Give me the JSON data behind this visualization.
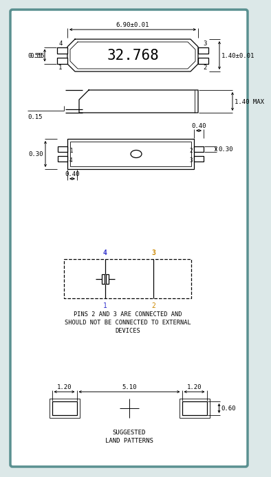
{
  "bg_color": "#dce8e8",
  "inner_bg": "#ffffff",
  "border_color": "#5a9090",
  "line_color": "#000000",
  "pin_color_14": "#3333cc",
  "pin_color_23": "#cc8800",
  "title": "32.768",
  "dim_6_90": "6.90±0.01",
  "dim_1_40_01": "1.40±0.01",
  "dim_1_40_max": "1.40 MAX",
  "dim_0_55": "0.55",
  "dim_0_15": "0.15",
  "dim_0_40_top": "0.40",
  "dim_0_30_r": "0.30",
  "dim_0_30_l": "0.30",
  "dim_0_40_bot": "0.40",
  "dim_1_20_left": "1.20",
  "dim_5_10": "5.10",
  "dim_1_20_right": "1.20",
  "dim_0_60": "0.60",
  "note_line1": "PINS 2 AND 3 ARE CONNECTED AND",
  "note_line2": "SHOULD NOT BE CONNECTED TO EXTERNAL",
  "note_line3": "DEVICES",
  "suggested": "SUGGESTED",
  "land_patterns": "LAND PATTERNS"
}
